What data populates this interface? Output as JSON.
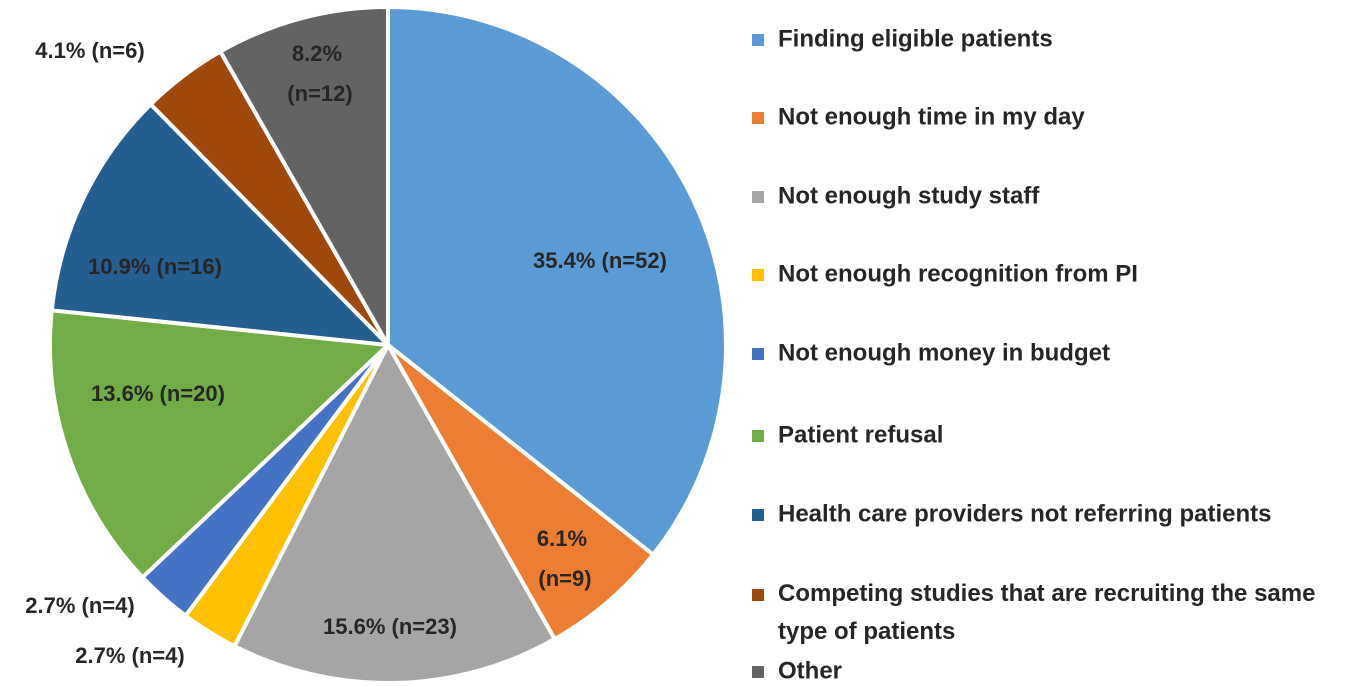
{
  "chart_data": {
    "type": "pie",
    "categories": [
      "Finding eligible patients",
      "Not enough time in my day",
      "Not enough study staff",
      "Not enough recognition from PI",
      "Not enough money in budget",
      "Patient refusal",
      "Health care providers not referring patients",
      "Competing studies that are recruiting the same type of patients",
      "Other"
    ],
    "values": [
      35.4,
      6.1,
      15.6,
      2.7,
      2.7,
      13.6,
      10.9,
      4.1,
      8.2
    ],
    "value_labels": [
      "35.4% (n=52)",
      "6.1% (n=9)",
      "15.6% (n=23)",
      "2.7% (n=4)",
      "2.7% (n=4)",
      "13.6% (n=20)",
      "10.9% (n=16)",
      "4.1% (n=6)",
      "8.2% (n=12)"
    ],
    "colors": [
      "#5b9bd5",
      "#ed7d31",
      "#a5a5a5",
      "#ffc000",
      "#4472c4",
      "#70ad47",
      "#255e91",
      "#9e480e",
      "#636363"
    ],
    "legend": "right"
  }
}
